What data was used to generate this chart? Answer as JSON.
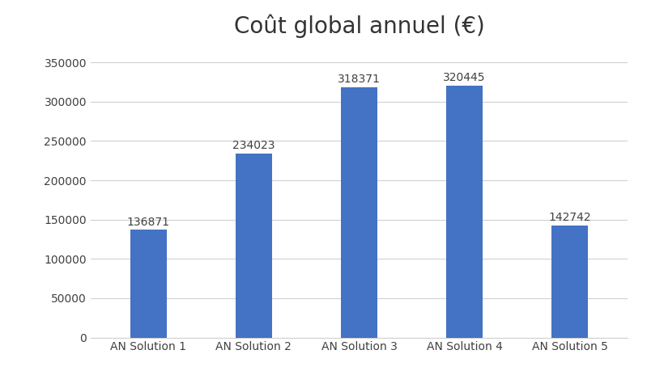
{
  "title": "Coût global annuel (€)",
  "categories": [
    "AN Solution 1",
    "AN Solution 2",
    "AN Solution 3",
    "AN Solution 4",
    "AN Solution 5"
  ],
  "values": [
    136871,
    234023,
    318371,
    320445,
    142742
  ],
  "bar_color": "#4472C4",
  "ylim": [
    0,
    370000
  ],
  "yticks": [
    0,
    50000,
    100000,
    150000,
    200000,
    250000,
    300000,
    350000
  ],
  "title_fontsize": 20,
  "label_fontsize": 10,
  "tick_fontsize": 10,
  "background_color": "#ffffff",
  "grid_color": "#d0d0d0",
  "bar_width": 0.35
}
